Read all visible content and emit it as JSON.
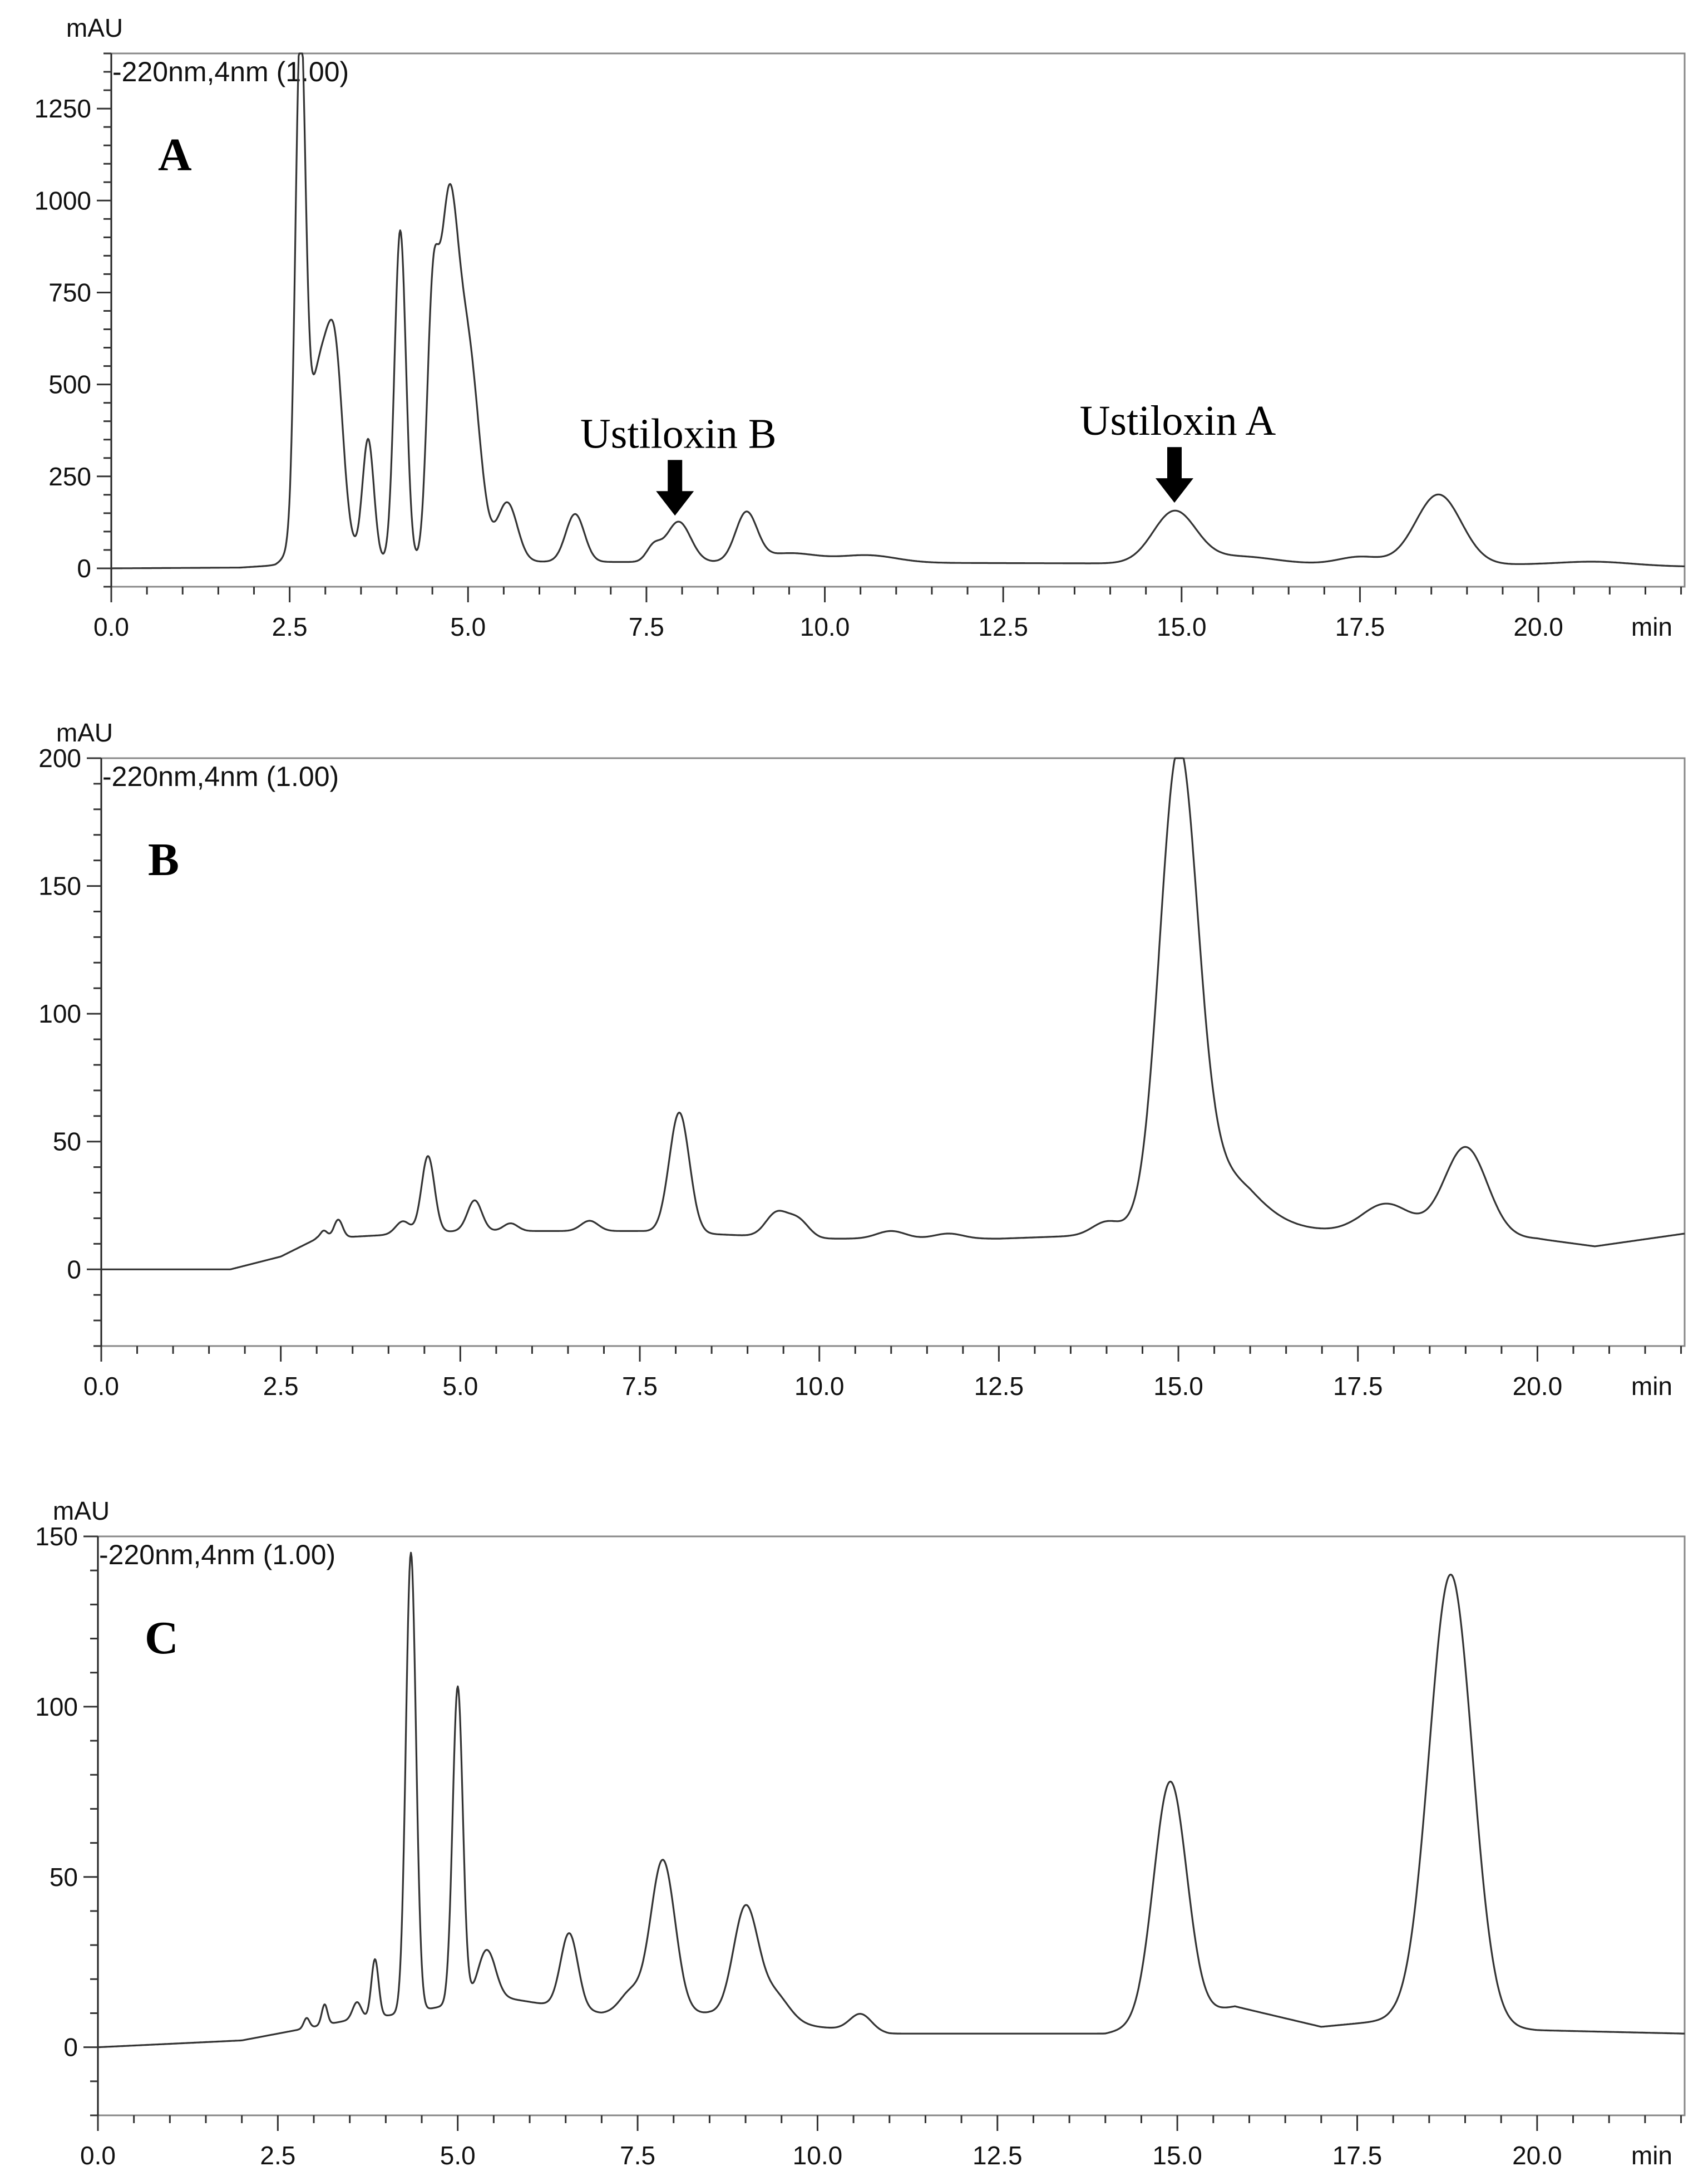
{
  "chart_data": [
    {
      "type": "line",
      "panel_label": "A",
      "channel_label": "-220nm,4nm (1.00)",
      "y_unit": "mAU",
      "x_unit": "min",
      "xlim": [
        0,
        22.05
      ],
      "ylim": [
        -50,
        1400
      ],
      "x_ticks": [
        "0.0",
        "2.5",
        "5.0",
        "7.5",
        "10.0",
        "12.5",
        "15.0",
        "17.5",
        "20.0"
      ],
      "y_ticks": [
        "0",
        "250",
        "500",
        "750",
        "1000",
        "1250"
      ],
      "annotations": [
        {
          "text": "Ustiloxin B",
          "x": 7.9,
          "y": 110
        },
        {
          "text": "Ustiloxin A",
          "x": 14.9,
          "y": 145
        }
      ],
      "series": [
        {
          "baseline": 0,
          "points": [
            [
              0,
              0
            ],
            [
              1.8,
              2
            ],
            [
              2.3,
              8
            ],
            [
              2.45,
              20
            ],
            [
              20.0,
              10
            ],
            [
              22.05,
              5
            ]
          ],
          "peaks": [
            [
              2.65,
              1300,
              0.07
            ],
            [
              2.95,
              550,
              0.2
            ],
            [
              3.15,
              270,
              0.1
            ],
            [
              3.6,
              330,
              0.08
            ],
            [
              4.05,
              900,
              0.08
            ],
            [
              4.5,
              580,
              0.08
            ],
            [
              4.72,
              880,
              0.13
            ],
            [
              5.0,
              560,
              0.16
            ],
            [
              5.55,
              160,
              0.14
            ],
            [
              6.5,
              130,
              0.13
            ],
            [
              7.6,
              40,
              0.1
            ],
            [
              7.95,
              110,
              0.17
            ],
            [
              8.9,
              130,
              0.15
            ],
            [
              9.5,
              25,
              0.4
            ],
            [
              10.6,
              20,
              0.4
            ],
            [
              14.9,
              140,
              0.3
            ],
            [
              15.8,
              20,
              0.5
            ],
            [
              17.5,
              20,
              0.3
            ],
            [
              18.6,
              190,
              0.32
            ],
            [
              20.8,
              10,
              0.5
            ]
          ]
        }
      ]
    },
    {
      "type": "line",
      "panel_label": "B",
      "channel_label": "-220nm,4nm  (1.00)",
      "y_unit": "mAU",
      "x_unit": "min",
      "xlim": [
        0,
        22.05
      ],
      "ylim": [
        -30,
        200
      ],
      "x_ticks": [
        "0.0",
        "2.5",
        "5.0",
        "7.5",
        "10.0",
        "12.5",
        "15.0",
        "17.5",
        "20.0"
      ],
      "y_ticks": [
        "0",
        "50",
        "100",
        "150",
        "200"
      ],
      "series": [
        {
          "baseline": 0,
          "points": [
            [
              0,
              0
            ],
            [
              1.8,
              0
            ],
            [
              2.5,
              5
            ],
            [
              3.0,
              12
            ],
            [
              5.0,
              15
            ],
            [
              7.5,
              15
            ],
            [
              10.0,
              12
            ],
            [
              12.5,
              12
            ],
            [
              14.5,
              14
            ],
            [
              16.0,
              18
            ],
            [
              17.5,
              14
            ],
            [
              20.0,
              12
            ],
            [
              20.8,
              9
            ],
            [
              22.05,
              14
            ]
          ],
          "peaks": [
            [
              3.1,
              3,
              0.05
            ],
            [
              3.3,
              7,
              0.06
            ],
            [
              4.2,
              5,
              0.1
            ],
            [
              4.55,
              30,
              0.09
            ],
            [
              5.2,
              12,
              0.1
            ],
            [
              5.7,
              3,
              0.1
            ],
            [
              6.8,
              4,
              0.12
            ],
            [
              8.05,
              47,
              0.14
            ],
            [
              9.4,
              9,
              0.15
            ],
            [
              9.7,
              7,
              0.15
            ],
            [
              11.0,
              3,
              0.2
            ],
            [
              11.8,
              2,
              0.2
            ],
            [
              14.0,
              5,
              0.2
            ],
            [
              15.0,
              176,
              0.26
            ],
            [
              15.5,
              22,
              0.5
            ],
            [
              17.9,
              12,
              0.35
            ],
            [
              19.0,
              35,
              0.3
            ]
          ]
        }
      ]
    },
    {
      "type": "line",
      "panel_label": "C",
      "channel_label": "-220nm,4nm  (1.00)",
      "y_unit": "mAU",
      "x_unit": "min",
      "xlim": [
        0,
        22.05
      ],
      "ylim": [
        -20,
        150
      ],
      "x_ticks": [
        "0.0",
        "2.5",
        "5.0",
        "7.5",
        "10.0",
        "12.5",
        "15.0",
        "17.5",
        "20.0"
      ],
      "y_ticks": [
        "0",
        "50",
        "100",
        "150"
      ],
      "series": [
        {
          "baseline": 0,
          "points": [
            [
              0,
              0
            ],
            [
              2.0,
              2
            ],
            [
              2.5,
              4
            ],
            [
              3.5,
              8
            ],
            [
              4.3,
              10
            ],
            [
              5.5,
              15
            ],
            [
              7.0,
              10
            ],
            [
              8.5,
              10
            ],
            [
              10.0,
              6
            ],
            [
              11.0,
              4
            ],
            [
              14.0,
              4
            ],
            [
              15.8,
              12
            ],
            [
              17.0,
              6
            ],
            [
              18.0,
              8
            ],
            [
              20.0,
              5
            ],
            [
              22.05,
              4
            ]
          ],
          "peaks": [
            [
              2.9,
              3,
              0.04
            ],
            [
              3.15,
              6,
              0.04
            ],
            [
              3.6,
              5,
              0.06
            ],
            [
              3.85,
              17,
              0.05
            ],
            [
              4.35,
              135,
              0.07
            ],
            [
              5.0,
              93,
              0.07
            ],
            [
              5.4,
              14,
              0.12
            ],
            [
              6.55,
              22,
              0.12
            ],
            [
              7.85,
              45,
              0.17
            ],
            [
              7.4,
              6,
              0.15
            ],
            [
              9.0,
              32,
              0.17
            ],
            [
              9.4,
              8,
              0.2
            ],
            [
              10.6,
              5,
              0.15
            ],
            [
              14.9,
              70,
              0.23
            ],
            [
              18.8,
              132,
              0.3
            ]
          ]
        }
      ]
    }
  ]
}
